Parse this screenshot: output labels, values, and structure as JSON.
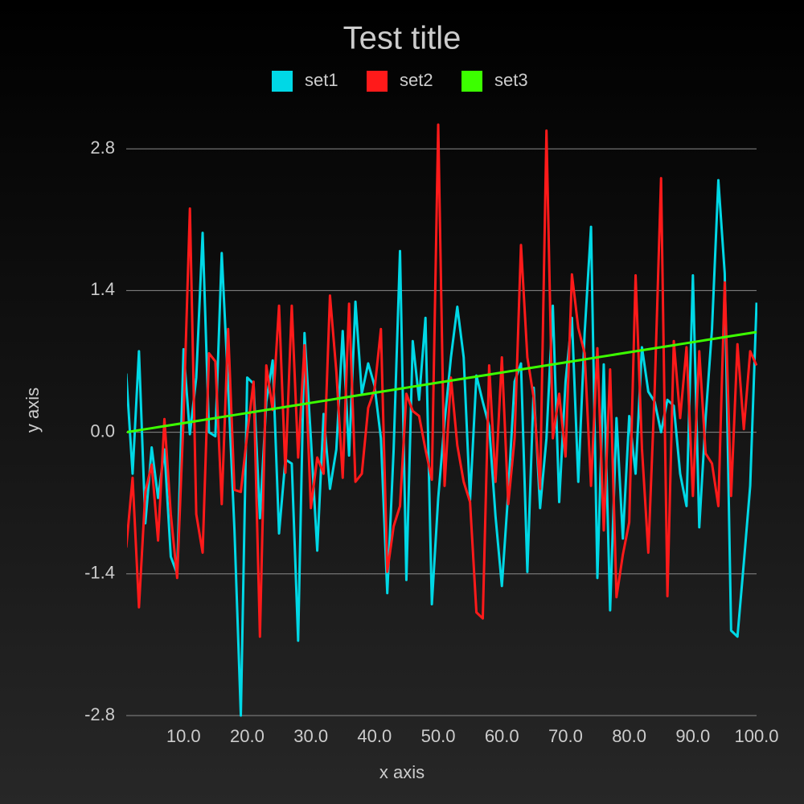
{
  "chart_data": {
    "type": "line",
    "title": "Test title",
    "xlabel": "x axis",
    "ylabel": "y axis",
    "legend": "top",
    "grid": true,
    "xlim": [
      1,
      100
    ],
    "ylim": [
      -2.8,
      3.1
    ],
    "xticks": [
      {
        "value": 10,
        "label": "10.0"
      },
      {
        "value": 20,
        "label": "20.0"
      },
      {
        "value": 30,
        "label": "30.0"
      },
      {
        "value": 40,
        "label": "40.0"
      },
      {
        "value": 50,
        "label": "50.0"
      },
      {
        "value": 60,
        "label": "60.0"
      },
      {
        "value": 70,
        "label": "70.0"
      },
      {
        "value": 80,
        "label": "80.0"
      },
      {
        "value": 90,
        "label": "90.0"
      },
      {
        "value": 100,
        "label": "100.0"
      }
    ],
    "yticks": [
      2.8,
      1.4,
      {
        "value": 0,
        "label": "0.0"
      },
      -1.4,
      -2.8
    ],
    "x": [
      1,
      2,
      3,
      4,
      5,
      6,
      7,
      8,
      9,
      10,
      11,
      12,
      13,
      14,
      15,
      16,
      17,
      18,
      19,
      20,
      21,
      22,
      23,
      24,
      25,
      26,
      27,
      28,
      29,
      30,
      31,
      32,
      33,
      34,
      35,
      36,
      37,
      38,
      39,
      40,
      41,
      42,
      43,
      44,
      45,
      46,
      47,
      48,
      49,
      50,
      51,
      52,
      53,
      54,
      55,
      56,
      57,
      58,
      59,
      60,
      61,
      62,
      63,
      64,
      65,
      66,
      67,
      68,
      69,
      70,
      71,
      72,
      73,
      74,
      75,
      76,
      77,
      78,
      79,
      80,
      81,
      82,
      83,
      84,
      85,
      86,
      87,
      88,
      89,
      90,
      91,
      92,
      93,
      94,
      95,
      96,
      97,
      98,
      99,
      100
    ],
    "series": [
      {
        "name": "set1",
        "color": "#00d8e6",
        "values": [
          0.58,
          -0.41,
          0.8,
          -0.9,
          -0.15,
          -0.65,
          -0.17,
          -1.23,
          -1.4,
          0.82,
          -0.02,
          0.54,
          1.97,
          0.0,
          -0.04,
          1.77,
          0.46,
          -0.97,
          -2.8,
          0.54,
          0.48,
          -0.85,
          0.3,
          0.71,
          -1.0,
          -0.27,
          -0.31,
          -2.06,
          0.98,
          -0.06,
          -1.17,
          0.18,
          -0.56,
          -0.17,
          1.0,
          -0.23,
          1.29,
          0.38,
          0.68,
          0.46,
          -0.06,
          -1.59,
          -0.17,
          1.79,
          -1.46,
          0.9,
          0.32,
          1.13,
          -1.7,
          -0.65,
          0.1,
          0.74,
          1.24,
          0.74,
          -0.67,
          0.56,
          0.3,
          0.06,
          -0.83,
          -1.52,
          -0.59,
          0.5,
          0.68,
          -1.38,
          0.44,
          -0.75,
          -0.06,
          1.25,
          -0.69,
          0.5,
          1.13,
          -0.49,
          0.98,
          2.03,
          -1.44,
          0.67,
          -1.76,
          0.14,
          -1.05,
          0.16,
          -0.41,
          0.84,
          0.4,
          0.3,
          0.0,
          0.32,
          0.26,
          -0.41,
          -0.73,
          1.55,
          -0.94,
          0.14,
          1.02,
          2.49,
          1.57,
          -1.96,
          -2.02,
          -1.29,
          -0.53,
          1.28
        ]
      },
      {
        "name": "set2",
        "color": "#ff1a1a",
        "values": [
          -1.14,
          -0.45,
          -1.73,
          -0.59,
          -0.32,
          -1.07,
          0.13,
          -0.81,
          -1.44,
          0.14,
          2.21,
          -0.81,
          -1.19,
          0.78,
          0.7,
          -0.71,
          1.02,
          -0.57,
          -0.59,
          -0.02,
          0.5,
          -2.02,
          0.66,
          0.22,
          1.25,
          -0.4,
          1.25,
          -0.25,
          0.86,
          -0.75,
          -0.25,
          -0.41,
          1.35,
          0.6,
          -0.45,
          1.27,
          -0.49,
          -0.41,
          0.24,
          0.42,
          1.02,
          -1.38,
          -0.93,
          -0.73,
          0.38,
          0.21,
          0.16,
          -0.17,
          -0.47,
          3.04,
          -0.53,
          0.54,
          -0.13,
          -0.49,
          -0.69,
          -1.78,
          -1.84,
          0.66,
          -0.49,
          0.74,
          -0.71,
          -0.06,
          1.85,
          0.74,
          0.34,
          -0.56,
          2.98,
          -0.06,
          0.38,
          -0.24,
          1.56,
          1.03,
          0.78,
          -0.53,
          0.83,
          -0.97,
          0.62,
          -1.63,
          -1.21,
          -0.89,
          1.55,
          -0.16,
          -1.19,
          0.42,
          2.51,
          -1.62,
          0.9,
          0.14,
          0.84,
          -0.63,
          0.8,
          -0.21,
          -0.31,
          -0.73,
          1.48,
          -0.63,
          0.87,
          0.03,
          0.8,
          0.66
        ]
      },
      {
        "name": "set3",
        "color": "#3cff00",
        "values": [
          0.0,
          0.01,
          0.02,
          0.03,
          0.04,
          0.05,
          0.06,
          0.07,
          0.08,
          0.09,
          0.1,
          0.11,
          0.12,
          0.13,
          0.14,
          0.15,
          0.16,
          0.17,
          0.18,
          0.19,
          0.2,
          0.21,
          0.22,
          0.23,
          0.24,
          0.25,
          0.26,
          0.27,
          0.28,
          0.29,
          0.3,
          0.31,
          0.32,
          0.33,
          0.34,
          0.35,
          0.36,
          0.37,
          0.38,
          0.39,
          0.4,
          0.41,
          0.42,
          0.43,
          0.44,
          0.45,
          0.46,
          0.47,
          0.48,
          0.49,
          0.5,
          0.51,
          0.52,
          0.53,
          0.54,
          0.55,
          0.56,
          0.57,
          0.58,
          0.59,
          0.6,
          0.61,
          0.62,
          0.63,
          0.64,
          0.65,
          0.66,
          0.67,
          0.68,
          0.69,
          0.7,
          0.71,
          0.72,
          0.73,
          0.74,
          0.75,
          0.76,
          0.77,
          0.78,
          0.79,
          0.8,
          0.81,
          0.82,
          0.83,
          0.84,
          0.85,
          0.86,
          0.87,
          0.88,
          0.89,
          0.9,
          0.91,
          0.92,
          0.93,
          0.94,
          0.95,
          0.96,
          0.97,
          0.98,
          0.99
        ]
      }
    ]
  }
}
